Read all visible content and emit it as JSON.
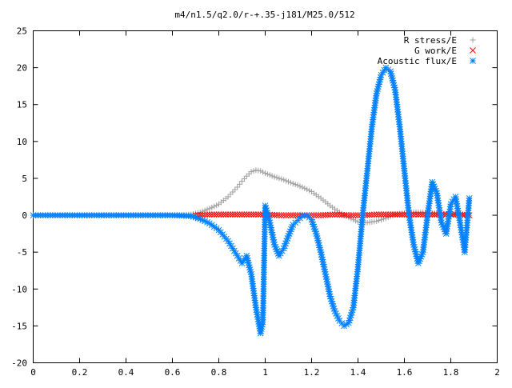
{
  "chart_data": {
    "type": "scatter",
    "title": "m4/n1.5/q2.0/r-+.35-j181/M25.0/512",
    "xlabel": "",
    "ylabel": "",
    "xlim": [
      0,
      2
    ],
    "ylim": [
      -20,
      25
    ],
    "xticks": [
      0,
      0.2,
      0.4,
      0.6,
      0.8,
      1,
      1.2,
      1.4,
      1.6,
      1.8,
      2
    ],
    "xtick_labels": [
      "0",
      "0.2",
      "0.4",
      "0.6",
      "0.8",
      "1",
      "1.2",
      "1.4",
      "1.6",
      "1.8",
      "2"
    ],
    "yticks": [
      -20,
      -15,
      -10,
      -5,
      0,
      5,
      10,
      15,
      20,
      25
    ],
    "ytick_labels": [
      "-20",
      "-15",
      "-10",
      "-5",
      "0",
      "5",
      "10",
      "15",
      "20",
      "25"
    ],
    "grid": false,
    "legend_position": "top-right",
    "series": [
      {
        "name": "R stress/E",
        "marker": "plus",
        "color": "#a0a0a0",
        "x": [
          0.0,
          0.2,
          0.4,
          0.6,
          0.68,
          0.72,
          0.76,
          0.8,
          0.84,
          0.88,
          0.9,
          0.92,
          0.94,
          0.96,
          0.98,
          1.0,
          1.04,
          1.08,
          1.12,
          1.16,
          1.2,
          1.24,
          1.28,
          1.32,
          1.36,
          1.4,
          1.44,
          1.48,
          1.52,
          1.56,
          1.6,
          1.64,
          1.68,
          1.72,
          1.76,
          1.8,
          1.84,
          1.88
        ],
        "y": [
          0.0,
          0.0,
          0.0,
          0.0,
          0.1,
          0.4,
          0.9,
          1.5,
          2.5,
          3.8,
          4.6,
          5.3,
          5.9,
          6.1,
          6.0,
          5.7,
          5.2,
          4.8,
          4.3,
          3.8,
          3.2,
          2.3,
          1.3,
          0.4,
          -0.3,
          -0.9,
          -1.0,
          -0.8,
          -0.4,
          0.1,
          0.3,
          0.4,
          0.4,
          0.3,
          0.2,
          0.1,
          0.1,
          0.0
        ]
      },
      {
        "name": "G work/E",
        "marker": "cross",
        "color": "#ff0000",
        "x": [
          0.7,
          0.76,
          0.82,
          0.88,
          0.94,
          1.0,
          1.06,
          1.12,
          1.18,
          1.24,
          1.3,
          1.36,
          1.42,
          1.48,
          1.54,
          1.6,
          1.66,
          1.72,
          1.78,
          1.84,
          1.88
        ],
        "y": [
          0.0,
          0.1,
          0.1,
          0.1,
          0.1,
          0.1,
          0.0,
          0.0,
          0.0,
          0.0,
          0.1,
          0.0,
          0.0,
          0.1,
          0.1,
          0.1,
          0.1,
          0.1,
          0.1,
          0.1,
          0.0
        ]
      },
      {
        "name": "Acoustic flux/E",
        "marker": "star",
        "color": "#0080ff",
        "x": [
          0.0,
          0.2,
          0.4,
          0.6,
          0.68,
          0.72,
          0.76,
          0.8,
          0.84,
          0.88,
          0.9,
          0.92,
          0.94,
          0.96,
          0.98,
          0.99,
          1.0,
          1.02,
          1.04,
          1.06,
          1.08,
          1.1,
          1.12,
          1.16,
          1.18,
          1.2,
          1.22,
          1.24,
          1.26,
          1.28,
          1.3,
          1.32,
          1.34,
          1.36,
          1.38,
          1.4,
          1.42,
          1.44,
          1.46,
          1.48,
          1.5,
          1.52,
          1.54,
          1.56,
          1.58,
          1.6,
          1.62,
          1.64,
          1.66,
          1.68,
          1.7,
          1.72,
          1.74,
          1.76,
          1.78,
          1.8,
          1.82,
          1.84,
          1.86,
          1.88
        ],
        "y": [
          0.0,
          0.0,
          0.0,
          0.0,
          -0.1,
          -0.5,
          -1.1,
          -2.0,
          -3.5,
          -5.5,
          -6.5,
          -5.5,
          -8.0,
          -12.5,
          -16.0,
          -14.5,
          1.3,
          -1.0,
          -4.0,
          -5.5,
          -4.5,
          -2.8,
          -1.3,
          -0.1,
          0.0,
          -0.6,
          -2.5,
          -5.0,
          -8.0,
          -11.0,
          -13.0,
          -14.3,
          -15.0,
          -14.6,
          -12.5,
          -7.0,
          0.0,
          6.0,
          12.0,
          16.5,
          19.0,
          20.0,
          19.5,
          17.0,
          12.0,
          6.0,
          0.0,
          -4.0,
          -6.5,
          -5.0,
          0.0,
          4.5,
          3.0,
          -1.0,
          -2.5,
          1.5,
          2.5,
          -1.0,
          -5.0,
          2.3
        ]
      }
    ]
  }
}
